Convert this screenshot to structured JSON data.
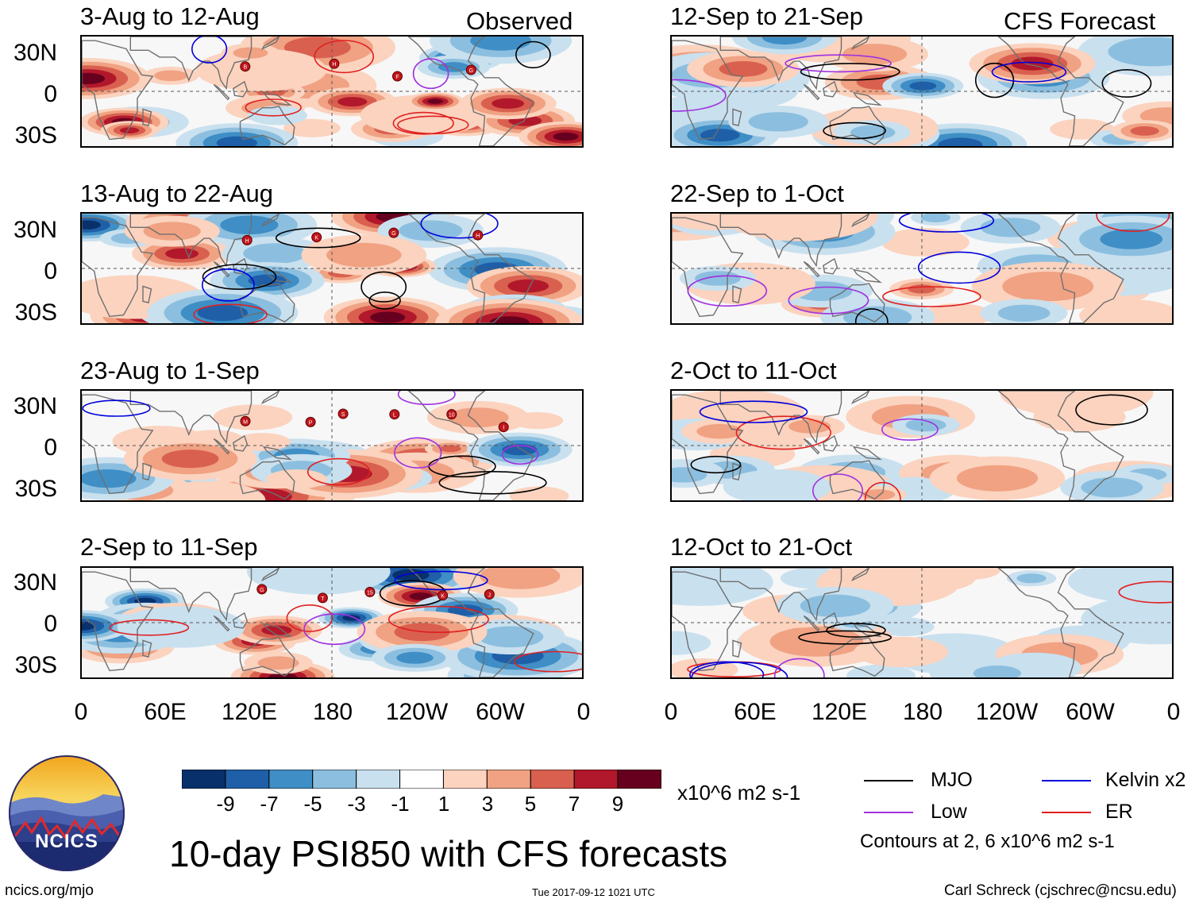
{
  "header": {
    "observed_label": "Observed",
    "forecast_label": "CFS Forecast"
  },
  "panels": [
    {
      "period": "3-Aug to 12-Aug",
      "type": "observed"
    },
    {
      "period": "13-Aug to 22-Aug",
      "type": "observed"
    },
    {
      "period": "23-Aug to 1-Sep",
      "type": "observed"
    },
    {
      "period": "2-Sep to 11-Sep",
      "type": "observed"
    },
    {
      "period": "12-Sep to 21-Sep",
      "type": "forecast"
    },
    {
      "period": "22-Sep to 1-Oct",
      "type": "forecast"
    },
    {
      "period": "2-Oct to 11-Oct",
      "type": "forecast"
    },
    {
      "period": "12-Oct to 21-Oct",
      "type": "forecast"
    }
  ],
  "axes": {
    "lat_labels": [
      "30N",
      "0",
      "30S"
    ],
    "lon_labels": [
      "0",
      "60E",
      "120E",
      "180",
      "120W",
      "60W",
      "0"
    ]
  },
  "colorbar": {
    "levels": [
      "-9",
      "-7",
      "-5",
      "-3",
      "-1",
      "1",
      "3",
      "5",
      "7",
      "9"
    ],
    "colors": [
      "#08306b",
      "#1f5fa8",
      "#3f8ec6",
      "#8cbfdf",
      "#c9e0ef",
      "#ffffff",
      "#fbd3bf",
      "#f0a283",
      "#d9604f",
      "#b2182b",
      "#67001f"
    ],
    "units": "x10^6 m2 s-1"
  },
  "legend": {
    "items": [
      {
        "label": "MJO",
        "color": "#000000"
      },
      {
        "label": "Kelvin x2",
        "color": "#0000dd"
      },
      {
        "label": "Low",
        "color": "#a030e0"
      },
      {
        "label": "ER",
        "color": "#e02020"
      }
    ],
    "note": "Contours at 2, 6 x10^6 m2 s-1"
  },
  "title": "10-day PSI850 with CFS forecasts",
  "logo": {
    "text": "NCICS"
  },
  "footer": {
    "url": "ncics.org/mjo",
    "timestamp": "Tue 2017-09-12 1021 UTC",
    "author": "Carl Schreck (cjschrec@ncsu.edu)"
  },
  "storm_markers": [
    {
      "panel": 0,
      "labels": [
        "B",
        "H",
        "F",
        "G"
      ]
    },
    {
      "panel": 1,
      "labels": [
        "H",
        "K",
        "G",
        "H"
      ]
    },
    {
      "panel": 2,
      "labels": [
        "M",
        "P",
        "S",
        "L",
        "10",
        "I"
      ]
    },
    {
      "panel": 3,
      "labels": [
        "G",
        "T",
        "15",
        "K",
        "J"
      ]
    }
  ]
}
